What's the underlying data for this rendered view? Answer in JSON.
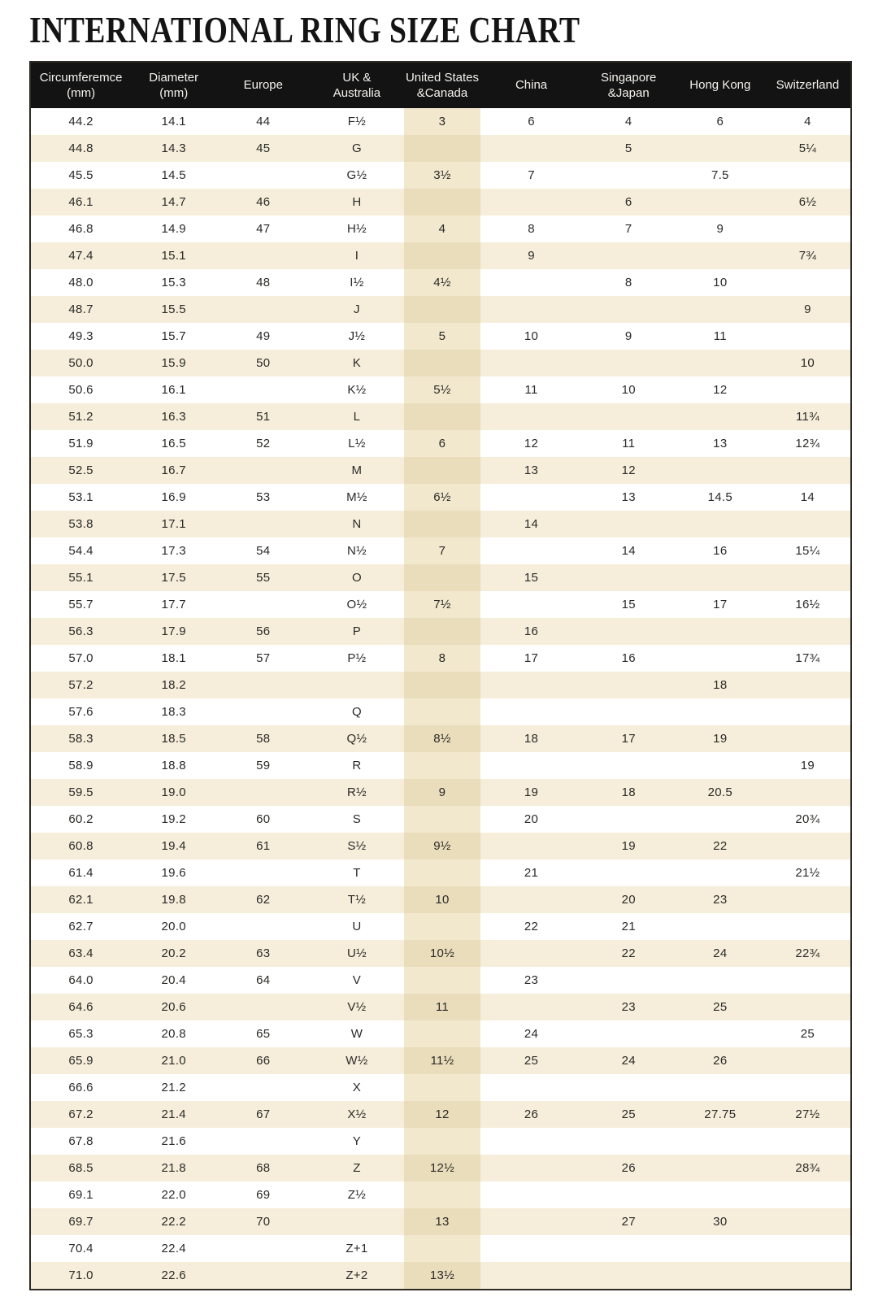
{
  "title": "INTERNATIONAL RING SIZE CHART",
  "colors": {
    "header_bg": "#131313",
    "header_text": "#f4f2ee",
    "row_cream": "#f6eedb",
    "us_column_on_white": "#f2e8cd",
    "us_column_on_cream": "#eaddbc",
    "body_text": "#2a2a28",
    "table_border": "#2e2a24"
  },
  "chart_data": {
    "type": "table",
    "title": "INTERNATIONAL RING SIZE CHART",
    "highlighted_column": "us-canada",
    "columns": [
      {
        "id": "circumference",
        "label": "Circumferemce\n(mm)"
      },
      {
        "id": "diameter",
        "label": "Diameter\n(mm)"
      },
      {
        "id": "europe",
        "label": "Europe"
      },
      {
        "id": "uk-australia",
        "label": "UK &\nAustralia"
      },
      {
        "id": "us-canada",
        "label": "United States\n&Canada"
      },
      {
        "id": "china",
        "label": "China"
      },
      {
        "id": "singapore-japan",
        "label": "Singapore\n&Japan"
      },
      {
        "id": "hong-kong",
        "label": "Hong Kong"
      },
      {
        "id": "switzerland",
        "label": "Switzerland"
      }
    ],
    "rows": [
      [
        "44.2",
        "14.1",
        "44",
        "F½",
        "3",
        "6",
        "4",
        "6",
        "4"
      ],
      [
        "44.8",
        "14.3",
        "45",
        "G",
        "",
        "",
        "5",
        "",
        "5¼"
      ],
      [
        "45.5",
        "14.5",
        "",
        "G½",
        "3½",
        "7",
        "",
        "7.5",
        ""
      ],
      [
        "46.1",
        "14.7",
        "46",
        "H",
        "",
        "",
        "6",
        "",
        "6½"
      ],
      [
        "46.8",
        "14.9",
        "47",
        "H½",
        "4",
        "8",
        "7",
        "9",
        ""
      ],
      [
        "47.4",
        "15.1",
        "",
        "I",
        "",
        "9",
        "",
        "",
        "7¾"
      ],
      [
        "48.0",
        "15.3",
        "48",
        "I½",
        "4½",
        "",
        "8",
        "10",
        ""
      ],
      [
        "48.7",
        "15.5",
        "",
        "J",
        "",
        "",
        "",
        "",
        "9"
      ],
      [
        "49.3",
        "15.7",
        "49",
        "J½",
        "5",
        "10",
        "9",
        "11",
        ""
      ],
      [
        "50.0",
        "15.9",
        "50",
        "K",
        "",
        "",
        "",
        "",
        "10"
      ],
      [
        "50.6",
        "16.1",
        "",
        "K½",
        "5½",
        "11",
        "10",
        "12",
        ""
      ],
      [
        "51.2",
        "16.3",
        "51",
        "L",
        "",
        "",
        "",
        "",
        "11¾"
      ],
      [
        "51.9",
        "16.5",
        "52",
        "L½",
        "6",
        "12",
        "11",
        "13",
        "12¾"
      ],
      [
        "52.5",
        "16.7",
        "",
        "M",
        "",
        "13",
        "12",
        "",
        ""
      ],
      [
        "53.1",
        "16.9",
        "53",
        "M½",
        "6½",
        "",
        "13",
        "14.5",
        "14"
      ],
      [
        "53.8",
        "17.1",
        "",
        "N",
        "",
        "14",
        "",
        "",
        ""
      ],
      [
        "54.4",
        "17.3",
        "54",
        "N½",
        "7",
        "",
        "14",
        "16",
        "15¼"
      ],
      [
        "55.1",
        "17.5",
        "55",
        "O",
        "",
        "15",
        "",
        "",
        ""
      ],
      [
        "55.7",
        "17.7",
        "",
        "O½",
        "7½",
        "",
        "15",
        "17",
        "16½"
      ],
      [
        "56.3",
        "17.9",
        "56",
        "P",
        "",
        "16",
        "",
        "",
        ""
      ],
      [
        "57.0",
        "18.1",
        "57",
        "P½",
        "8",
        "17",
        "16",
        "",
        "17¾"
      ],
      [
        "57.2",
        "18.2",
        "",
        "",
        "",
        "",
        "",
        "18",
        ""
      ],
      [
        "57.6",
        "18.3",
        "",
        "Q",
        "",
        "",
        "",
        "",
        ""
      ],
      [
        "58.3",
        "18.5",
        "58",
        "Q½",
        "8½",
        "18",
        "17",
        "19",
        ""
      ],
      [
        "58.9",
        "18.8",
        "59",
        "R",
        "",
        "",
        "",
        "",
        "19"
      ],
      [
        "59.5",
        "19.0",
        "",
        "R½",
        "9",
        "19",
        "18",
        "20.5",
        ""
      ],
      [
        "60.2",
        "19.2",
        "60",
        "S",
        "",
        "20",
        "",
        "",
        "20¾"
      ],
      [
        "60.8",
        "19.4",
        "61",
        "S½",
        "9½",
        "",
        "19",
        "22",
        ""
      ],
      [
        "61.4",
        "19.6",
        "",
        "T",
        "",
        "21",
        "",
        "",
        "21½"
      ],
      [
        "62.1",
        "19.8",
        "62",
        "T½",
        "10",
        "",
        "20",
        "23",
        ""
      ],
      [
        "62.7",
        "20.0",
        "",
        "U",
        "",
        "22",
        "21",
        "",
        ""
      ],
      [
        "63.4",
        "20.2",
        "63",
        "U½",
        "10½",
        "",
        "22",
        "24",
        "22¾"
      ],
      [
        "64.0",
        "20.4",
        "64",
        "V",
        "",
        "23",
        "",
        "",
        ""
      ],
      [
        "64.6",
        "20.6",
        "",
        "V½",
        "11",
        "",
        "23",
        "25",
        ""
      ],
      [
        "65.3",
        "20.8",
        "65",
        "W",
        "",
        "24",
        "",
        "",
        "25"
      ],
      [
        "65.9",
        "21.0",
        "66",
        "W½",
        "11½",
        "25",
        "24",
        "26",
        ""
      ],
      [
        "66.6",
        "21.2",
        "",
        "X",
        "",
        "",
        "",
        "",
        ""
      ],
      [
        "67.2",
        "21.4",
        "67",
        "X½",
        "12",
        "26",
        "25",
        "27.75",
        "27½"
      ],
      [
        "67.8",
        "21.6",
        "",
        "Y",
        "",
        "",
        "",
        "",
        ""
      ],
      [
        "68.5",
        "21.8",
        "68",
        "Z",
        "12½",
        "",
        "26",
        "",
        "28¾"
      ],
      [
        "69.1",
        "22.0",
        "69",
        "Z½",
        "",
        "",
        "",
        "",
        ""
      ],
      [
        "69.7",
        "22.2",
        "70",
        "",
        "13",
        "",
        "27",
        "30",
        ""
      ],
      [
        "70.4",
        "22.4",
        "",
        "Z+1",
        "",
        "",
        "",
        "",
        ""
      ],
      [
        "71.0",
        "22.6",
        "",
        "Z+2",
        "13½",
        "",
        "",
        "",
        ""
      ]
    ]
  }
}
